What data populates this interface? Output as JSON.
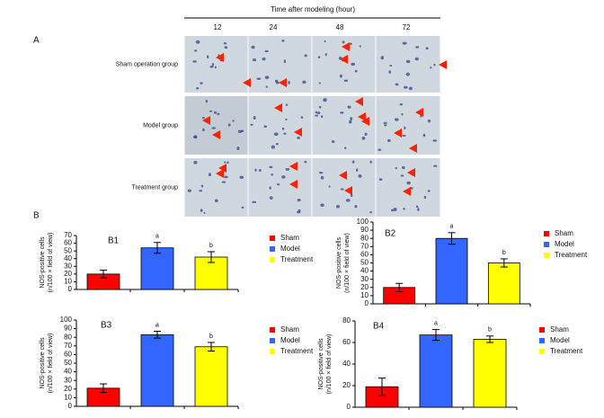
{
  "panel_a": {
    "label": "A",
    "header": "Time after modeling (hour)",
    "columns": [
      "12",
      "24",
      "48",
      "72"
    ],
    "rows": [
      "Sham operation group",
      "Model group",
      "Treatment group"
    ]
  },
  "panel_b_label": "B",
  "chart_data": [
    {
      "type": "bar",
      "title": "B1",
      "ylabel": [
        "NOS-positive cells",
        "(n/100 × field of view)"
      ],
      "categories": [
        "Sham",
        "Model",
        "Treatment"
      ],
      "colors": [
        "#ff0000",
        "#3366ff",
        "#ffff00"
      ],
      "values": [
        20,
        54,
        42
      ],
      "errors": [
        5,
        7,
        7
      ],
      "annotations": [
        null,
        "a",
        "b"
      ],
      "ylim": [
        0,
        70
      ],
      "yticks": [
        0,
        10,
        20,
        30,
        40,
        50,
        60,
        70
      ]
    },
    {
      "type": "bar",
      "title": "B2",
      "ylabel": [
        "NOS-positive cells",
        "(n/100 × field of view)"
      ],
      "categories": [
        "Sham",
        "Model",
        "Treatment"
      ],
      "colors": [
        "#ff0000",
        "#3366ff",
        "#ffff00"
      ],
      "values": [
        20,
        80,
        50
      ],
      "errors": [
        5,
        7,
        5
      ],
      "annotations": [
        null,
        "a",
        "b"
      ],
      "ylim": [
        0,
        100
      ],
      "yticks": [
        0,
        10,
        20,
        30,
        40,
        50,
        60,
        70,
        80,
        90,
        100
      ]
    },
    {
      "type": "bar",
      "title": "B3",
      "ylabel": [
        "NOS-positive cells",
        "(n/100 × field of view)"
      ],
      "categories": [
        "Sham",
        "Model",
        "Treatment"
      ],
      "colors": [
        "#ff0000",
        "#3366ff",
        "#ffff00"
      ],
      "values": [
        21,
        83,
        69
      ],
      "errors": [
        5,
        4,
        5
      ],
      "annotations": [
        null,
        "a",
        "b"
      ],
      "ylim": [
        0,
        100
      ],
      "yticks": [
        0,
        10,
        20,
        30,
        40,
        50,
        60,
        70,
        80,
        90,
        100
      ]
    },
    {
      "type": "bar",
      "title": "B4",
      "ylabel": [
        "NOS-positive cells",
        "(n/100 × field of view)"
      ],
      "categories": [
        "Sham",
        "Model",
        "Treatment"
      ],
      "colors": [
        "#ff0000",
        "#3366ff",
        "#ffff00"
      ],
      "values": [
        19,
        67,
        63
      ],
      "errors": [
        8,
        5,
        3
      ],
      "annotations": [
        null,
        "a",
        "b"
      ],
      "ylim": [
        0,
        80
      ],
      "yticks": [
        0,
        20,
        40,
        60,
        80
      ]
    }
  ]
}
